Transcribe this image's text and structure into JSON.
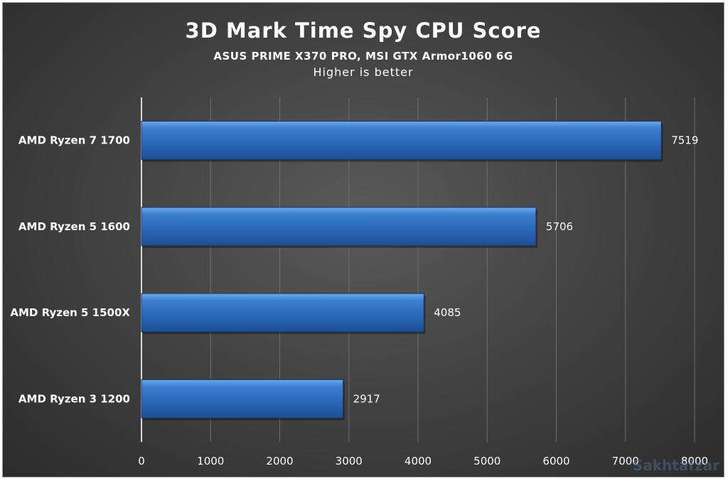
{
  "chart_data": {
    "type": "bar",
    "orientation": "horizontal",
    "title": "3D Mark Time Spy CPU Score",
    "subtitle": "ASUS PRIME X370 PRO, MSI GTX Armor1060 6G",
    "note": "Higher is better",
    "categories": [
      "AMD Ryzen 7 1700",
      "AMD Ryzen 5 1600",
      "AMD Ryzen 5 1500X",
      "AMD Ryzen 3 1200"
    ],
    "values": [
      7519,
      5706,
      4085,
      2917
    ],
    "xlim": [
      0,
      8000
    ],
    "x_ticks": [
      "0",
      "1000",
      "2000",
      "3000",
      "4000",
      "5000",
      "6000",
      "7000",
      "8000"
    ],
    "grid": true,
    "bar_color": "#2f6fbf",
    "label_color": "#ffffff"
  },
  "watermark": "Sakhtafzar"
}
